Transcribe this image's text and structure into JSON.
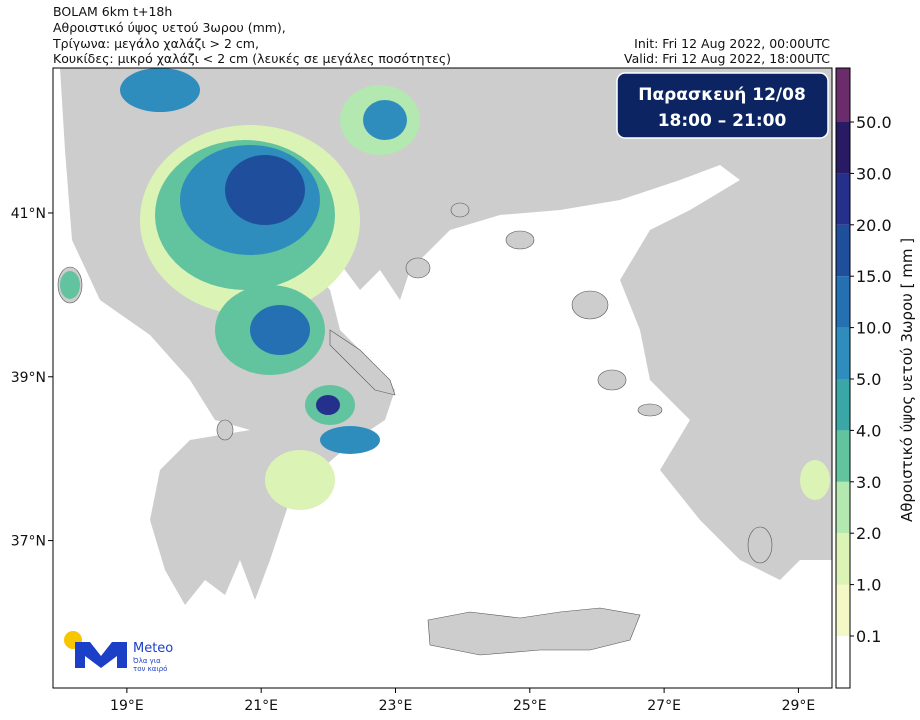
{
  "header": {
    "lines": [
      "BOLAM 6km t+18h",
      "Αθροιστικό ύψος υετού 3ωρου (mm),",
      "Τρίγωνα: μεγάλο χαλάζι > 2 cm,",
      "Κουκίδες: μικρό χαλάζι < 2 cm (λευκές σε μεγάλες ποσότητες)"
    ],
    "init": "Init: Fri 12 Aug 2022, 00:00UTC",
    "valid": "Valid: Fri 12 Aug 2022, 18:00UTC"
  },
  "badge": {
    "day": "Παρασκευή  12/08",
    "time": "18:00 – 21:00"
  },
  "map": {
    "xlim": [
      17.9,
      29.5
    ],
    "ylim": [
      35.2,
      42.77
    ],
    "lon_ticks": [
      {
        "value": 19,
        "label": "19°E"
      },
      {
        "value": 21,
        "label": "21°E"
      },
      {
        "value": 23,
        "label": "23°E"
      },
      {
        "value": 25,
        "label": "25°E"
      },
      {
        "value": 27,
        "label": "27°E"
      },
      {
        "value": 29,
        "label": "29°E"
      }
    ],
    "lat_ticks": [
      {
        "value": 37,
        "label": "37°N"
      },
      {
        "value": 39,
        "label": "39°N"
      },
      {
        "value": 41,
        "label": "41°N"
      }
    ]
  },
  "colorbar": {
    "title": "Αθροιστικό ύψος υετού 3ωρου [ mm ]",
    "ticks": [
      {
        "value": 0.1,
        "label": "0.1"
      },
      {
        "value": 1,
        "label": "1.0"
      },
      {
        "value": 2,
        "label": "2.0"
      },
      {
        "value": 3,
        "label": "3.0"
      },
      {
        "value": 4,
        "label": "4.0"
      },
      {
        "value": 5,
        "label": "5.0"
      },
      {
        "value": 10,
        "label": "10.0"
      },
      {
        "value": 15,
        "label": "15.0"
      },
      {
        "value": 20,
        "label": "20.0"
      },
      {
        "value": 30,
        "label": "30.0"
      },
      {
        "value": 50,
        "label": "50.0"
      }
    ],
    "colors": [
      "#ffffff",
      "#f4f7c6",
      "#dcf3b6",
      "#b3e8b0",
      "#62c39f",
      "#3aa6a6",
      "#2f8dbd",
      "#2470b3",
      "#1f4f9c",
      "#24308c",
      "#281a63",
      "#6b2c6b"
    ]
  },
  "logo": {
    "name": "Meteo",
    "tagline": [
      "Όλα για",
      "τον καιρό"
    ]
  }
}
